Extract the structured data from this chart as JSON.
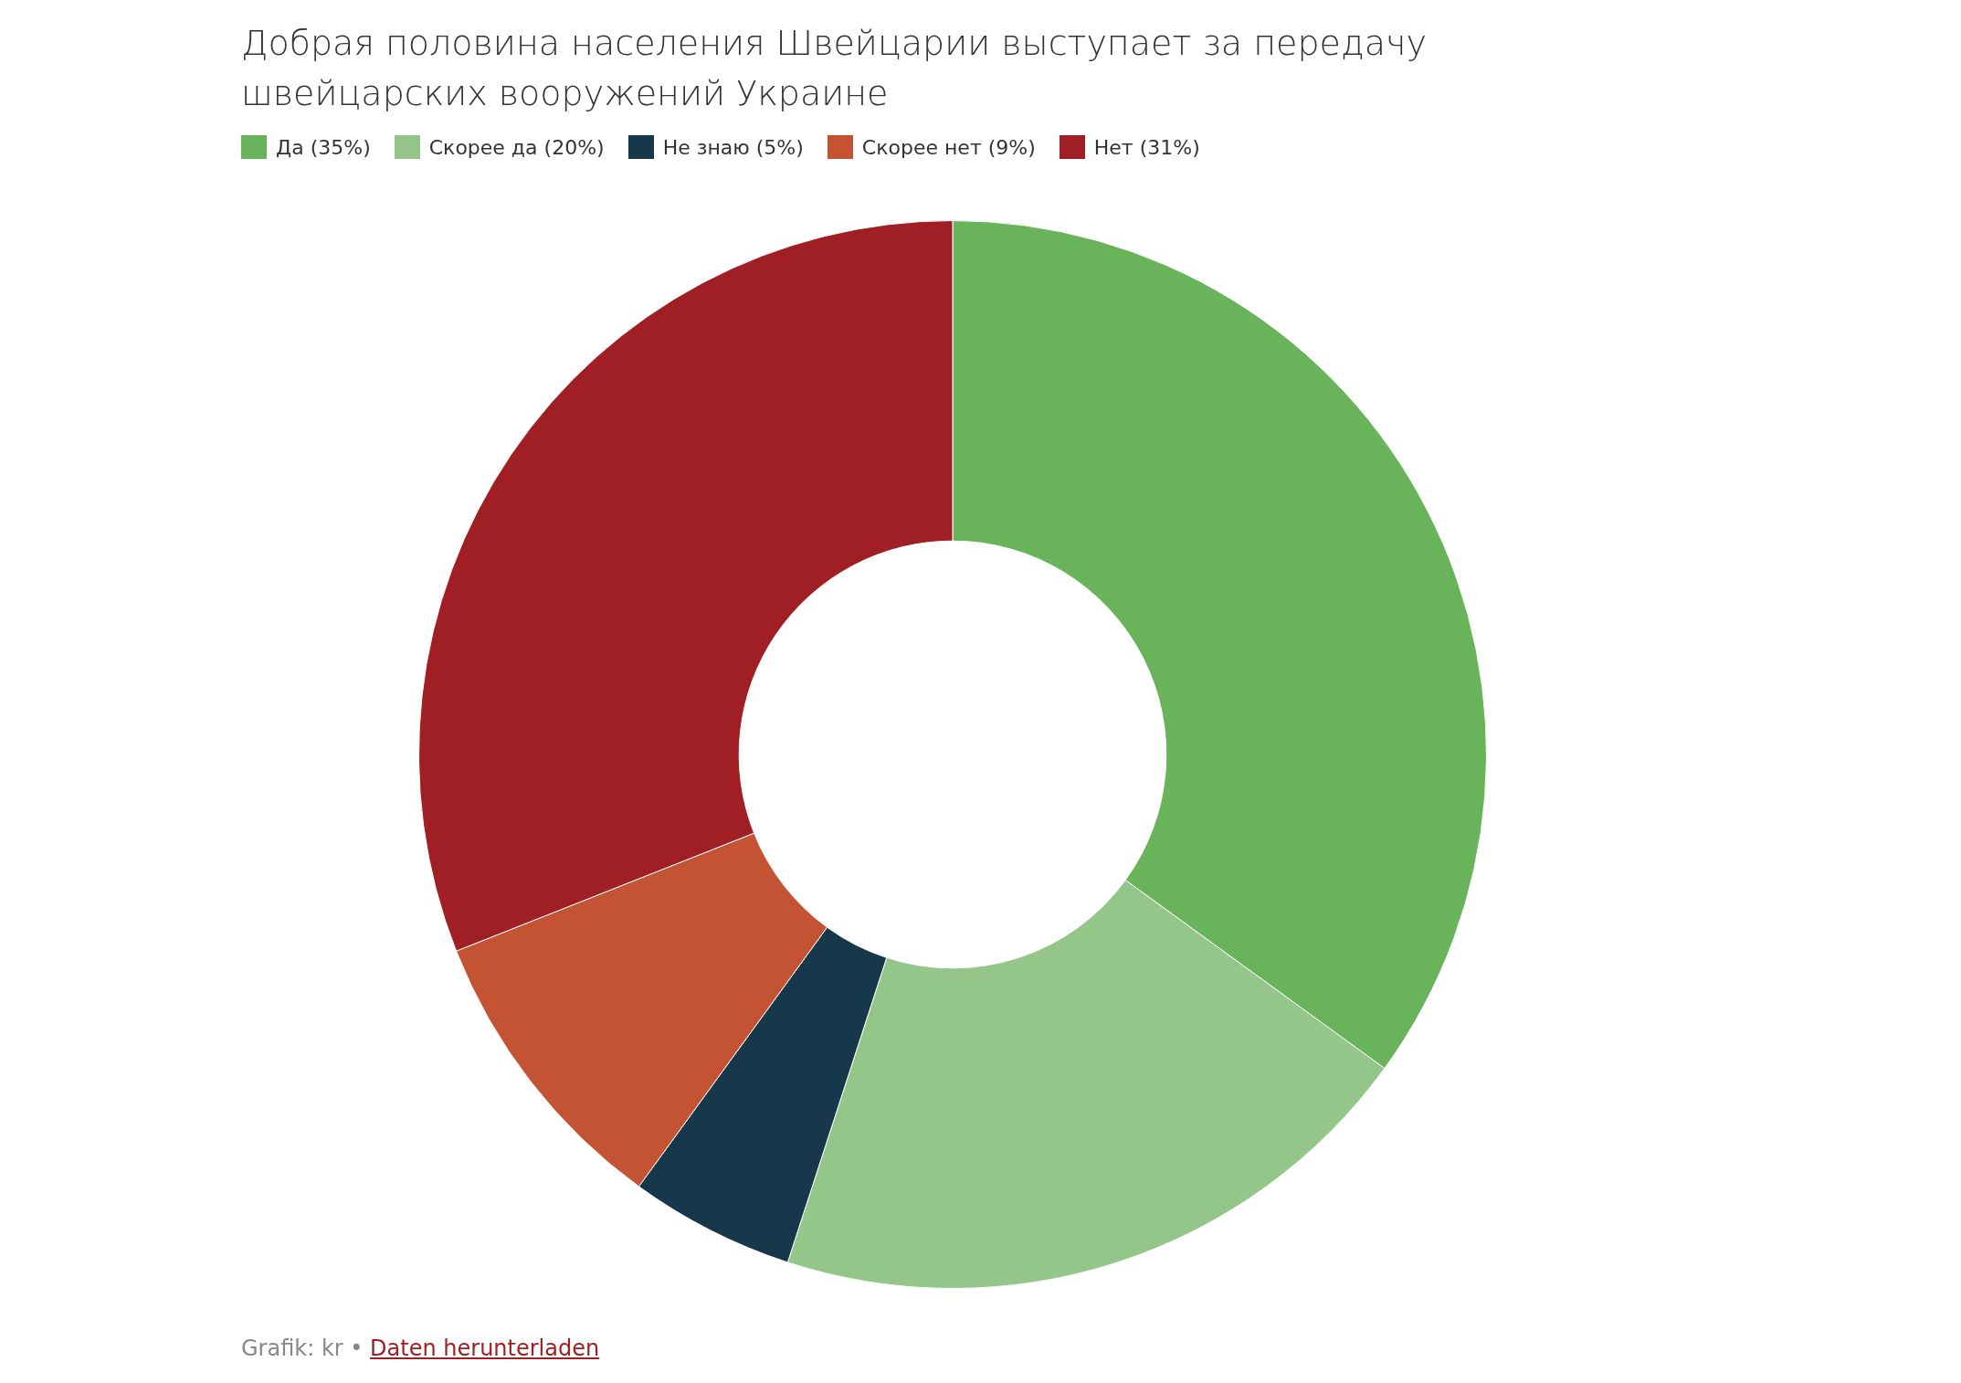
{
  "chart_data": {
    "type": "donut",
    "title": "Добрая половина населения Швейцарии выступает за передачу швейцарских вооружений Украине",
    "categories": [
      "Да (35%)",
      "Скорее да (20%)",
      "Не знаю (5%)",
      "Скорее нет (9%)",
      "Нет (31%)"
    ],
    "values": [
      35,
      20,
      5,
      9,
      31
    ],
    "colors": [
      "#69b35a",
      "#95c689",
      "#17384a",
      "#c35333",
      "#a01f24"
    ],
    "legend": "top left",
    "annotations": [
      "Grafik: kr •",
      "Daten herunterladen"
    ]
  }
}
